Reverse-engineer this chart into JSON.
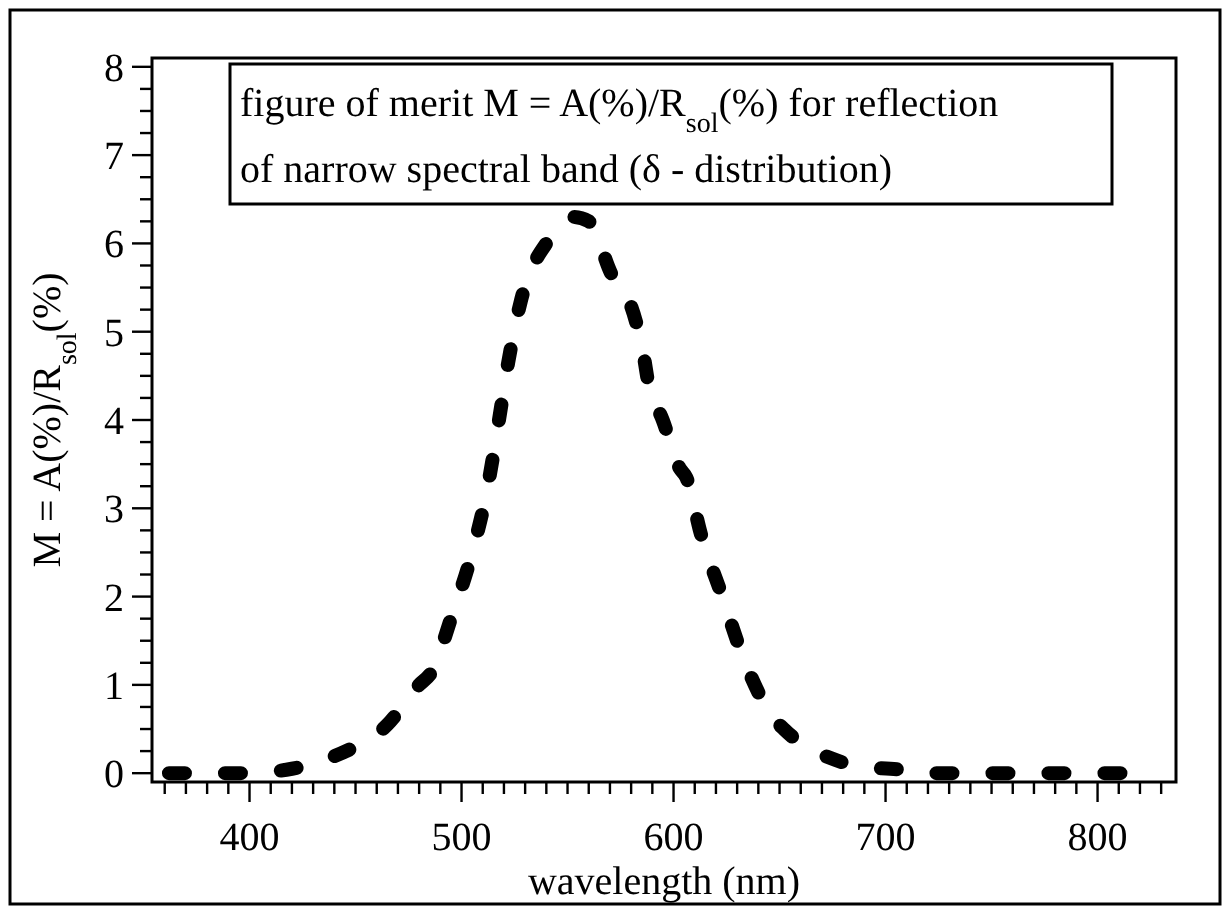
{
  "chart_data": {
    "type": "line",
    "xlabel": "wavelength (nm)",
    "ylabel": "M = A(%)/R$_{sol}$(%)",
    "annotations": [
      "figure of merit M = A(%)/R$_{sol}$(%) for reflection",
      "of narrow spectral band (δ - distribution)"
    ],
    "x": [
      362,
      368,
      392,
      398,
      420,
      426,
      450,
      458,
      465,
      480,
      486,
      495,
      505,
      512,
      517,
      522,
      528,
      540,
      546,
      553,
      560,
      572,
      576,
      585,
      590,
      593,
      603,
      606,
      613,
      623,
      633,
      648,
      652,
      680,
      686,
      710,
      716,
      740,
      750,
      775,
      782,
      805,
      812
    ],
    "series": [
      {
        "color": "#000000",
        "values": [
          0,
          0,
          0,
          0,
          0.05,
          0.08,
          0.3,
          0.4,
          0.55,
          1.0,
          1.15,
          1.75,
          2.5,
          3.2,
          3.9,
          4.65,
          5.35,
          6.0,
          6.15,
          6.3,
          6.25,
          5.6,
          5.5,
          4.85,
          4.2,
          4.1,
          3.45,
          3.35,
          2.7,
          2.0,
          1.3,
          0.6,
          0.5,
          0.12,
          0.08,
          0.03,
          0,
          0,
          0,
          0,
          0,
          0,
          0
        ]
      }
    ],
    "line_style": "dashed",
    "marker": "none",
    "grid": false,
    "xlim": [
      354,
      837
    ],
    "ylim": [
      -0.1,
      8.1
    ],
    "xticks": [
      {
        "value": 360,
        "label": null
      },
      {
        "value": 370,
        "label": null
      },
      {
        "value": 380,
        "label": null
      },
      {
        "value": 390,
        "label": null
      },
      400,
      {
        "value": 410,
        "label": null
      },
      {
        "value": 420,
        "label": null
      },
      {
        "value": 430,
        "label": null
      },
      {
        "value": 440,
        "label": null
      },
      {
        "value": 450,
        "label": null
      },
      {
        "value": 460,
        "label": null
      },
      {
        "value": 470,
        "label": null
      },
      {
        "value": 480,
        "label": null
      },
      {
        "value": 490,
        "label": null
      },
      500,
      {
        "value": 510,
        "label": null
      },
      {
        "value": 520,
        "label": null
      },
      {
        "value": 530,
        "label": null
      },
      {
        "value": 540,
        "label": null
      },
      {
        "value": 550,
        "label": null
      },
      {
        "value": 560,
        "label": null
      },
      {
        "value": 570,
        "label": null
      },
      {
        "value": 580,
        "label": null
      },
      {
        "value": 590,
        "label": null
      },
      600,
      {
        "value": 610,
        "label": null
      },
      {
        "value": 620,
        "label": null
      },
      {
        "value": 630,
        "label": null
      },
      {
        "value": 640,
        "label": null
      },
      {
        "value": 650,
        "label": null
      },
      {
        "value": 660,
        "label": null
      },
      {
        "value": 670,
        "label": null
      },
      {
        "value": 680,
        "label": null
      },
      {
        "value": 690,
        "label": null
      },
      700,
      {
        "value": 710,
        "label": null
      },
      {
        "value": 720,
        "label": null
      },
      {
        "value": 730,
        "label": null
      },
      {
        "value": 740,
        "label": null
      },
      {
        "value": 750,
        "label": null
      },
      {
        "value": 760,
        "label": null
      },
      {
        "value": 770,
        "label": null
      },
      {
        "value": 780,
        "label": null
      },
      {
        "value": 790,
        "label": null
      },
      800,
      {
        "value": 810,
        "label": null
      },
      {
        "value": 820,
        "label": null
      },
      {
        "value": 830,
        "label": null
      }
    ],
    "yticks": [
      0,
      {
        "value": 0.25,
        "label": null
      },
      {
        "value": 0.5,
        "label": null
      },
      {
        "value": 0.75,
        "label": null
      },
      1,
      {
        "value": 1.25,
        "label": null
      },
      {
        "value": 1.5,
        "label": null
      },
      {
        "value": 1.75,
        "label": null
      },
      2,
      {
        "value": 2.25,
        "label": null
      },
      {
        "value": 2.5,
        "label": null
      },
      {
        "value": 2.75,
        "label": null
      },
      3,
      {
        "value": 3.25,
        "label": null
      },
      {
        "value": 3.5,
        "label": null
      },
      {
        "value": 3.75,
        "label": null
      },
      4,
      {
        "value": 4.25,
        "label": null
      },
      {
        "value": 4.5,
        "label": null
      },
      {
        "value": 4.75,
        "label": null
      },
      5,
      {
        "value": 5.25,
        "label": null
      },
      {
        "value": 5.5,
        "label": null
      },
      {
        "value": 5.75,
        "label": null
      },
      6,
      {
        "value": 6.25,
        "label": null
      },
      {
        "value": 6.5,
        "label": null
      },
      {
        "value": 6.75,
        "label": null
      },
      7,
      {
        "value": 7.25,
        "label": null
      },
      {
        "value": 7.5,
        "label": null
      },
      {
        "value": 7.75,
        "label": null
      },
      8
    ]
  }
}
